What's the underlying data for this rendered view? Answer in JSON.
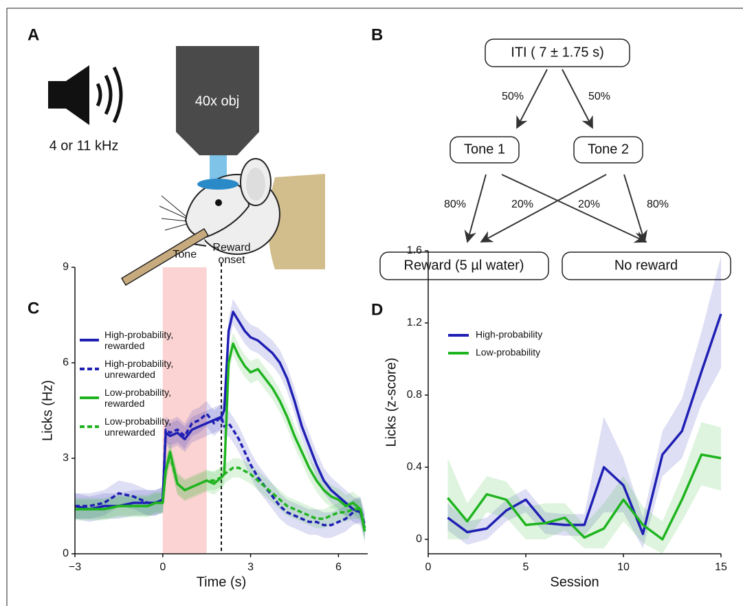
{
  "panel_labels": [
    "A",
    "B",
    "C",
    "D"
  ],
  "panel_a": {
    "sound_label": "4 or 11 kHz",
    "objective_label": "40x obj"
  },
  "panel_b": {
    "nodes": [
      {
        "label": "ITI ( 7 ± 1.75 s)"
      },
      {
        "label": "Tone 1"
      },
      {
        "label": "Tone 2"
      },
      {
        "label": "Reward (5 µl water)"
      },
      {
        "label": "No reward"
      }
    ],
    "edge_labels": [
      "50%",
      "50%",
      "80%",
      "20%",
      "20%",
      "80%"
    ]
  },
  "chart_data": [
    {
      "type": "line",
      "xlabel": "Time (s)",
      "ylabel": "Licks (Hz)",
      "xlim": [
        -3,
        7
      ],
      "ylim": [
        0,
        9
      ],
      "xticks": [
        {
          "value": -3,
          "label": "−3"
        },
        0,
        3,
        6
      ],
      "yticks": [
        0,
        3,
        6,
        9
      ],
      "shaded_region": {
        "x": [
          0,
          1.5
        ],
        "label": "Tone",
        "color": "#fbd3d3"
      },
      "vline": {
        "x": 2,
        "label": [
          "Reward",
          "onset"
        ]
      },
      "x": [
        -3,
        -2.5,
        -2,
        -1.5,
        -1,
        -0.5,
        -0.25,
        0,
        0.1,
        0.25,
        0.5,
        0.75,
        1,
        1.25,
        1.5,
        1.75,
        2,
        2.1,
        2.25,
        2.4,
        2.6,
        2.8,
        3,
        3.25,
        3.5,
        3.75,
        4,
        4.25,
        4.5,
        4.75,
        5,
        5.25,
        5.5,
        5.75,
        6,
        6.25,
        6.5,
        6.75,
        6.9
      ],
      "series": [
        {
          "name": "High-probability, rewarded",
          "color": "#1f1fb4",
          "dash": false,
          "error": 0.4,
          "values": [
            1.5,
            1.4,
            1.5,
            1.5,
            1.6,
            1.6,
            1.6,
            1.7,
            3.8,
            3.7,
            3.8,
            3.6,
            3.9,
            4.0,
            4.1,
            4.2,
            4.3,
            4.5,
            7.0,
            7.6,
            7.3,
            7.0,
            6.8,
            6.7,
            6.5,
            6.3,
            6.0,
            5.5,
            4.8,
            4.0,
            3.4,
            2.8,
            2.3,
            2.0,
            1.8,
            1.6,
            1.4,
            1.3,
            0.8
          ]
        },
        {
          "name": "High-probability, unrewarded",
          "color": "#1f1fb4",
          "dash": true,
          "error": 0.4,
          "values": [
            1.5,
            1.5,
            1.6,
            1.9,
            1.8,
            1.6,
            1.6,
            1.7,
            3.9,
            3.8,
            3.9,
            3.7,
            4.1,
            4.2,
            4.4,
            4.1,
            4.3,
            4.0,
            4.1,
            3.9,
            3.6,
            3.2,
            2.8,
            2.4,
            2.1,
            1.8,
            1.5,
            1.3,
            1.2,
            1.1,
            1.0,
            1.0,
            0.9,
            0.9,
            1.0,
            1.1,
            1.3,
            1.4,
            0.9
          ]
        },
        {
          "name": "Low-probability, rewarded",
          "color": "#1fb41f",
          "dash": false,
          "error": 0.35,
          "values": [
            1.4,
            1.4,
            1.4,
            1.5,
            1.5,
            1.5,
            1.6,
            1.6,
            2.6,
            3.2,
            2.2,
            2.0,
            2.1,
            2.2,
            2.3,
            2.2,
            2.4,
            2.5,
            6.0,
            6.6,
            6.2,
            5.9,
            5.7,
            5.8,
            5.5,
            5.2,
            4.8,
            4.3,
            3.7,
            3.2,
            2.7,
            2.3,
            2.0,
            1.8,
            1.7,
            1.5,
            1.6,
            1.4,
            0.7
          ]
        },
        {
          "name": "Low-probability, unrewarded",
          "color": "#1fb41f",
          "dash": true,
          "error": 0.3,
          "values": [
            1.4,
            1.4,
            1.4,
            1.5,
            1.5,
            1.5,
            1.6,
            1.6,
            2.6,
            3.1,
            2.2,
            2.0,
            2.1,
            2.2,
            2.3,
            2.3,
            2.4,
            2.5,
            2.6,
            2.7,
            2.7,
            2.6,
            2.5,
            2.3,
            2.1,
            1.9,
            1.7,
            1.5,
            1.4,
            1.3,
            1.2,
            1.1,
            1.1,
            1.2,
            1.3,
            1.3,
            1.4,
            1.4,
            0.8
          ]
        }
      ]
    },
    {
      "type": "line",
      "xlabel": "Session",
      "ylabel": "Licks (z-score)",
      "xlim": [
        0,
        15
      ],
      "ylim": [
        -0.08,
        1.6
      ],
      "xticks": [
        0,
        5,
        10,
        15
      ],
      "yticks": [
        0,
        0.4,
        0.8,
        1.2,
        1.6
      ],
      "x": [
        1,
        2,
        3,
        4,
        5,
        6,
        7,
        8,
        9,
        10,
        11,
        12,
        13,
        14,
        15
      ],
      "series": [
        {
          "name": "High-probability",
          "color": "#1f1fb4",
          "dash": false,
          "values": [
            0.12,
            0.04,
            0.06,
            0.16,
            0.22,
            0.09,
            0.08,
            0.08,
            0.4,
            0.3,
            0.03,
            0.47,
            0.6,
            0.93,
            1.25
          ],
          "lower": [
            0.05,
            -0.03,
            0.0,
            0.1,
            0.15,
            0.03,
            0.02,
            0.02,
            0.15,
            0.15,
            -0.05,
            0.35,
            0.45,
            0.75,
            0.95
          ],
          "upper": [
            0.2,
            0.1,
            0.12,
            0.22,
            0.28,
            0.15,
            0.14,
            0.14,
            0.68,
            0.45,
            0.12,
            0.6,
            0.78,
            1.15,
            1.57
          ]
        },
        {
          "name": "Low-probability",
          "color": "#1fb41f",
          "dash": false,
          "values": [
            0.23,
            0.1,
            0.25,
            0.22,
            0.08,
            0.09,
            0.12,
            0.01,
            0.06,
            0.22,
            0.08,
            0.0,
            0.22,
            0.47,
            0.45
          ],
          "lower": [
            0.0,
            0.0,
            0.15,
            0.12,
            0.0,
            0.0,
            0.05,
            -0.05,
            -0.05,
            0.1,
            -0.02,
            -0.08,
            0.1,
            0.3,
            0.27
          ],
          "upper": [
            0.45,
            0.2,
            0.35,
            0.32,
            0.18,
            0.2,
            0.2,
            0.08,
            0.2,
            0.35,
            0.18,
            0.1,
            0.35,
            0.65,
            0.62
          ]
        }
      ]
    }
  ]
}
